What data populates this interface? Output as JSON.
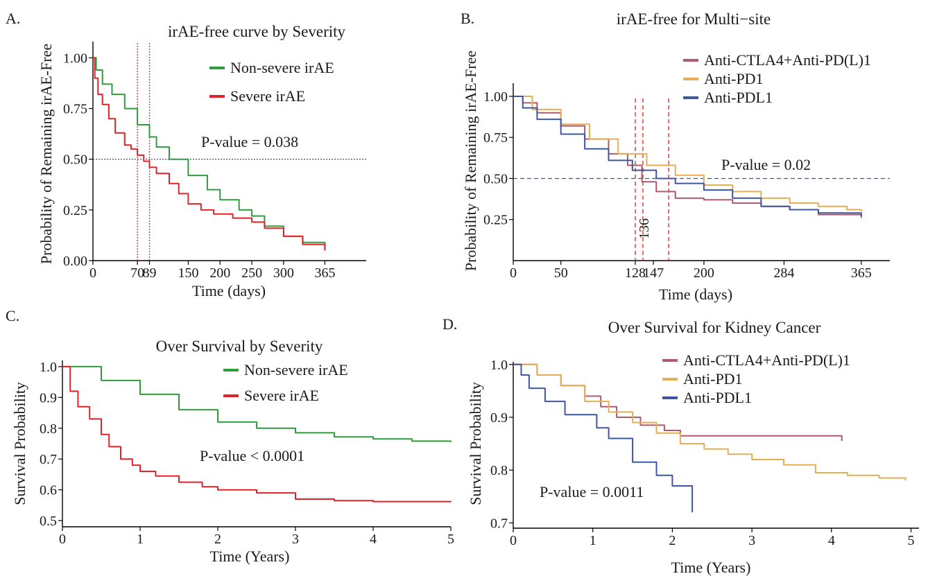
{
  "panels": [
    {
      "id": "A",
      "label": "A.",
      "title": "irAE-free curve by Severity",
      "xlabel": "Time (days)",
      "ylabel": "Probability of Remaining irAE-Free",
      "xlim": [
        0,
        430
      ],
      "ylim": [
        0,
        1.08
      ],
      "xticks": [
        {
          "v": 0,
          "t": "0"
        },
        {
          "v": 70,
          "t": "70"
        },
        {
          "v": 89,
          "t": "89"
        },
        {
          "v": 150,
          "t": "150"
        },
        {
          "v": 200,
          "t": "200"
        },
        {
          "v": 250,
          "t": "250"
        },
        {
          "v": 300,
          "t": "300"
        },
        {
          "v": 365,
          "t": "365"
        }
      ],
      "yticks": [
        {
          "v": 0,
          "t": "0.00"
        },
        {
          "v": 0.25,
          "t": "0.25"
        },
        {
          "v": 0.5,
          "t": "0.50"
        },
        {
          "v": 0.75,
          "t": "0.75"
        },
        {
          "v": 1.0,
          "t": "1.00"
        }
      ],
      "pvalue": "P-value = 0.038",
      "median_line": 0.5,
      "vlines": [
        70,
        89
      ],
      "legend": [
        {
          "name": "Non-severe irAE",
          "color": "#2e9d3a"
        },
        {
          "name": "Severe irAE",
          "color": "#e32227"
        }
      ],
      "series": [
        {
          "name": "Non-severe irAE",
          "color": "#2e9d3a",
          "x": [
            0,
            5,
            15,
            30,
            50,
            70,
            89,
            100,
            120,
            150,
            180,
            200,
            230,
            250,
            270,
            300,
            330,
            365
          ],
          "y": [
            1.0,
            0.94,
            0.87,
            0.82,
            0.75,
            0.67,
            0.61,
            0.56,
            0.5,
            0.42,
            0.35,
            0.3,
            0.25,
            0.22,
            0.17,
            0.12,
            0.09,
            0.05
          ]
        },
        {
          "name": "Severe irAE",
          "color": "#e32227",
          "x": [
            0,
            3,
            8,
            15,
            25,
            35,
            50,
            60,
            70,
            80,
            89,
            100,
            120,
            135,
            150,
            170,
            190,
            220,
            250,
            270,
            300,
            330,
            365
          ],
          "y": [
            1.0,
            0.9,
            0.82,
            0.77,
            0.7,
            0.63,
            0.57,
            0.55,
            0.52,
            0.49,
            0.46,
            0.43,
            0.38,
            0.33,
            0.28,
            0.25,
            0.23,
            0.21,
            0.19,
            0.16,
            0.12,
            0.08,
            0.05
          ]
        }
      ]
    },
    {
      "id": "B",
      "label": "B.",
      "title": "irAE-free for Multi−site",
      "xlabel": "Time (days)",
      "ylabel": "Probability of Remaining irAE-Free",
      "xlim": [
        0,
        395
      ],
      "ylim": [
        0,
        1.08
      ],
      "xticks": [
        {
          "v": 0,
          "t": "0"
        },
        {
          "v": 50,
          "t": "50"
        },
        {
          "v": 128,
          "t": "128"
        },
        {
          "v": 147,
          "t": "147"
        },
        {
          "v": 200,
          "t": "200"
        },
        {
          "v": 284,
          "t": "284"
        },
        {
          "v": 365,
          "t": "365"
        }
      ],
      "yticks": [
        {
          "v": 0.25,
          "t": "0.25"
        },
        {
          "v": 0.5,
          "t": "0.50"
        },
        {
          "v": 0.75,
          "t": "0.75"
        },
        {
          "v": 1.0,
          "t": "1.00"
        }
      ],
      "vline_label": {
        "v": 136,
        "t": "136"
      },
      "pvalue": "P-value = 0.02",
      "median_line": 0.5,
      "vlines": [
        128,
        136,
        163
      ],
      "legend": [
        {
          "name": "Anti-CTLA4+Anti-PD(L)1",
          "color": "#b05a6a"
        },
        {
          "name": "Anti-PD1",
          "color": "#e6ad57"
        },
        {
          "name": "Anti-PDL1",
          "color": "#3e55a3"
        }
      ],
      "series": [
        {
          "name": "Anti-CTLA4+Anti-PD(L)1",
          "color": "#b05a6a",
          "x": [
            0,
            10,
            25,
            50,
            75,
            100,
            120,
            135,
            150,
            170,
            200,
            230,
            260,
            290,
            320,
            365
          ],
          "y": [
            1.0,
            0.96,
            0.9,
            0.82,
            0.74,
            0.65,
            0.58,
            0.48,
            0.42,
            0.38,
            0.37,
            0.35,
            0.33,
            0.31,
            0.28,
            0.26
          ]
        },
        {
          "name": "Anti-PD1",
          "color": "#e6ad57",
          "x": [
            0,
            20,
            50,
            80,
            110,
            140,
            170,
            200,
            230,
            260,
            290,
            320,
            350,
            365
          ],
          "y": [
            1.0,
            0.92,
            0.83,
            0.74,
            0.65,
            0.58,
            0.52,
            0.46,
            0.42,
            0.38,
            0.35,
            0.33,
            0.31,
            0.3
          ]
        },
        {
          "name": "Anti-PDL1",
          "color": "#3e55a3",
          "x": [
            0,
            10,
            25,
            50,
            75,
            100,
            125,
            150,
            170,
            200,
            230,
            260,
            290,
            320,
            365
          ],
          "y": [
            1.0,
            0.93,
            0.86,
            0.77,
            0.68,
            0.61,
            0.55,
            0.5,
            0.47,
            0.43,
            0.38,
            0.33,
            0.31,
            0.29,
            0.27
          ]
        }
      ]
    },
    {
      "id": "C",
      "label": "C.",
      "title": "Over Survival by Severity",
      "xlabel": "Time (Years)",
      "ylabel": "Survival Probability",
      "xlim": [
        0,
        5
      ],
      "ylim": [
        0.48,
        1.02
      ],
      "xticks": [
        {
          "v": 0,
          "t": "0"
        },
        {
          "v": 1,
          "t": "1"
        },
        {
          "v": 2,
          "t": "2"
        },
        {
          "v": 3,
          "t": "3"
        },
        {
          "v": 4,
          "t": "4"
        },
        {
          "v": 5,
          "t": "5"
        }
      ],
      "yticks": [
        {
          "v": 0.5,
          "t": "0.5"
        },
        {
          "v": 0.6,
          "t": "0.6"
        },
        {
          "v": 0.7,
          "t": "0.7"
        },
        {
          "v": 0.8,
          "t": "0.8"
        },
        {
          "v": 0.9,
          "t": "0.9"
        },
        {
          "v": 1.0,
          "t": "1.0"
        }
      ],
      "pvalue": "P-value < 0.0001",
      "legend": [
        {
          "name": "Non-severe irAE",
          "color": "#2e9d3a"
        },
        {
          "name": "Severe irAE",
          "color": "#e32227"
        }
      ],
      "series": [
        {
          "name": "Non-severe irAE",
          "color": "#2e9d3a",
          "x": [
            0,
            0.5,
            1,
            1.5,
            2,
            2.5,
            3,
            3.5,
            4,
            4.5,
            5
          ],
          "y": [
            1.0,
            0.955,
            0.91,
            0.86,
            0.82,
            0.8,
            0.785,
            0.772,
            0.765,
            0.758,
            0.755
          ]
        },
        {
          "name": "Severe irAE",
          "color": "#e32227",
          "x": [
            0,
            0.1,
            0.2,
            0.35,
            0.5,
            0.6,
            0.75,
            0.9,
            1,
            1.2,
            1.5,
            1.8,
            2,
            2.5,
            3,
            3.5,
            4,
            5
          ],
          "y": [
            1.0,
            0.92,
            0.87,
            0.83,
            0.78,
            0.74,
            0.7,
            0.68,
            0.66,
            0.645,
            0.625,
            0.61,
            0.6,
            0.59,
            0.57,
            0.565,
            0.562,
            0.56
          ]
        }
      ]
    },
    {
      "id": "D",
      "label": "D.",
      "title": "Over Survival for Kidney Cancer",
      "xlabel": "Time (Years)",
      "ylabel": "Survival Probability",
      "xlim": [
        0,
        5.1
      ],
      "ylim": [
        0.69,
        1.005
      ],
      "xticks": [
        {
          "v": 0,
          "t": "0"
        },
        {
          "v": 1,
          "t": "1"
        },
        {
          "v": 2,
          "t": "2"
        },
        {
          "v": 3,
          "t": "3"
        },
        {
          "v": 4,
          "t": "4"
        },
        {
          "v": 5,
          "t": "5"
        }
      ],
      "yticks": [
        {
          "v": 0.7,
          "t": "0.7"
        },
        {
          "v": 0.8,
          "t": "0.8"
        },
        {
          "v": 0.9,
          "t": "0.9"
        },
        {
          "v": 1.0,
          "t": "1.0"
        }
      ],
      "pvalue": "P-value = 0.0011",
      "legend": [
        {
          "name": "Anti-CTLA4+Anti-PD(L)1",
          "color": "#b05a6a"
        },
        {
          "name": "Anti-PD1",
          "color": "#e6ad57"
        },
        {
          "name": "Anti-PDL1",
          "color": "#3e55a3"
        }
      ],
      "series": [
        {
          "name": "Anti-CTLA4+Anti-PD(L)1",
          "color": "#b05a6a",
          "x": [
            0,
            0.3,
            0.6,
            0.9,
            1.1,
            1.3,
            1.6,
            1.9,
            2.1,
            4.13
          ],
          "y": [
            1.0,
            0.98,
            0.96,
            0.94,
            0.92,
            0.9,
            0.885,
            0.875,
            0.865,
            0.855
          ]
        },
        {
          "name": "Anti-PD1",
          "color": "#e6ad57",
          "x": [
            0,
            0.3,
            0.6,
            0.9,
            1.2,
            1.5,
            1.8,
            2.1,
            2.4,
            2.7,
            3.0,
            3.4,
            3.8,
            4.2,
            4.6,
            4.93
          ],
          "y": [
            1.0,
            0.98,
            0.96,
            0.93,
            0.91,
            0.89,
            0.87,
            0.85,
            0.84,
            0.83,
            0.82,
            0.81,
            0.795,
            0.79,
            0.785,
            0.78
          ]
        },
        {
          "name": "Anti-PDL1",
          "color": "#3e55a3",
          "x": [
            0,
            0.1,
            0.2,
            0.4,
            0.65,
            1.05,
            1.2,
            1.5,
            1.8,
            2.0,
            2.25
          ],
          "y": [
            1.0,
            0.98,
            0.955,
            0.93,
            0.905,
            0.88,
            0.86,
            0.815,
            0.79,
            0.77,
            0.72
          ]
        }
      ]
    }
  ]
}
